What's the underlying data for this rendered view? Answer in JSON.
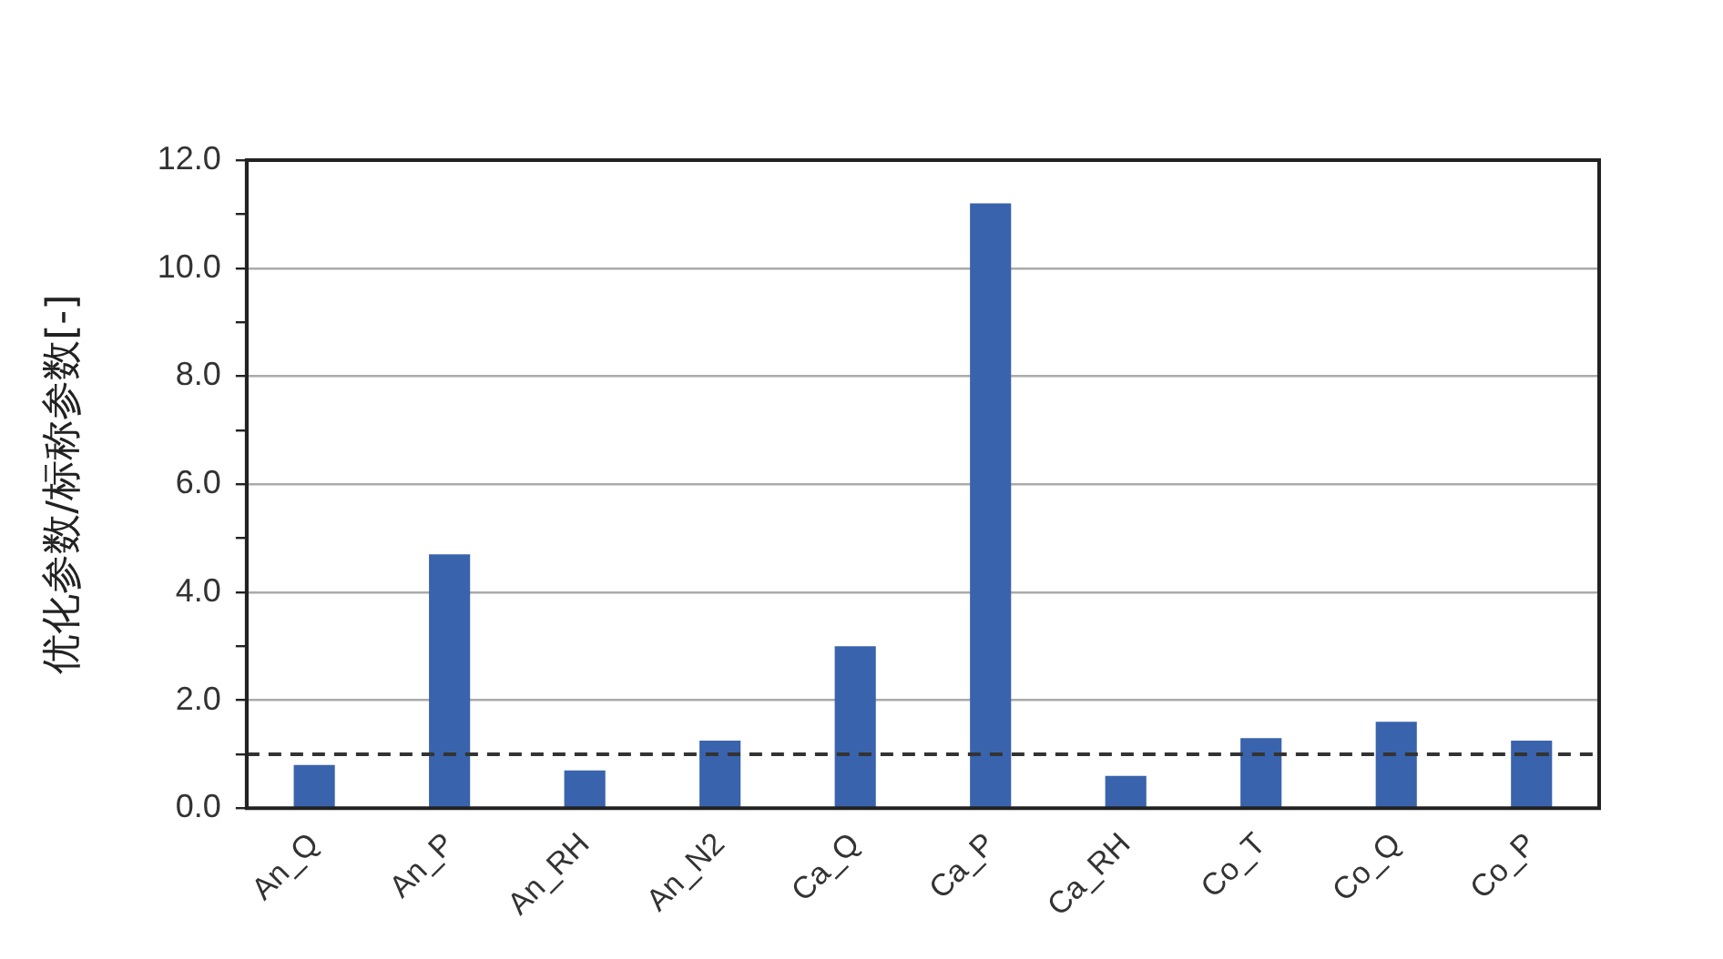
{
  "chart_data": {
    "type": "bar",
    "ylabel": "优化参数/标称参数[-]",
    "categories": [
      "An_Q",
      "An_P",
      "An_RH",
      "An_N2",
      "Ca_Q",
      "Ca_P",
      "Ca_RH",
      "Co_T",
      "Co_Q",
      "Co_P"
    ],
    "values": [
      0.8,
      4.7,
      0.7,
      1.25,
      3.0,
      11.2,
      0.6,
      1.3,
      1.6,
      1.25
    ],
    "color": "#3a63ad",
    "ylim": [
      0,
      12
    ],
    "yticks": [
      {
        "value": 0,
        "label": "0.0"
      },
      {
        "value": 1,
        "label": null
      },
      {
        "value": 2,
        "label": "2.0"
      },
      {
        "value": 3,
        "label": null
      },
      {
        "value": 4,
        "label": "4.0"
      },
      {
        "value": 5,
        "label": null
      },
      {
        "value": 6,
        "label": "6.0"
      },
      {
        "value": 7,
        "label": null
      },
      {
        "value": 8,
        "label": "8.0"
      },
      {
        "value": 9,
        "label": null
      },
      {
        "value": 10,
        "label": "10.0"
      },
      {
        "value": 11,
        "label": null
      },
      {
        "value": 12,
        "label": "12.0"
      }
    ],
    "grid": "y",
    "legend": false,
    "ref_lines": [
      {
        "axis": "y",
        "value": 1.0,
        "color": "#333333",
        "line_style": "dashed"
      }
    ]
  }
}
